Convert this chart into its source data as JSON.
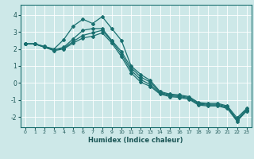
{
  "xlabel": "Humidex (Indice chaleur)",
  "ylabel": "",
  "background_color": "#cde8e8",
  "grid_color": "#b0d8d8",
  "line_color": "#1a7070",
  "xlim": [
    -0.5,
    23.5
  ],
  "ylim": [
    -2.6,
    4.6
  ],
  "yticks": [
    -2,
    -1,
    0,
    1,
    2,
    3,
    4
  ],
  "xticks": [
    0,
    1,
    2,
    3,
    4,
    5,
    6,
    7,
    8,
    9,
    10,
    11,
    12,
    13,
    14,
    15,
    16,
    17,
    18,
    19,
    20,
    21,
    22,
    23
  ],
  "lines": [
    {
      "x": [
        0,
        1,
        2,
        3,
        4,
        5,
        6,
        7,
        8,
        9,
        10,
        11,
        12,
        13,
        14,
        15,
        16,
        17,
        18,
        19,
        20,
        21,
        22,
        23
      ],
      "y": [
        2.3,
        2.3,
        2.15,
        2.0,
        2.55,
        3.35,
        3.75,
        3.5,
        3.9,
        3.2,
        2.5,
        1.0,
        0.5,
        0.15,
        -0.5,
        -0.65,
        -0.7,
        -0.8,
        -1.15,
        -1.2,
        -1.2,
        -1.35,
        -2.05,
        -1.5
      ]
    },
    {
      "x": [
        0,
        1,
        2,
        3,
        4,
        5,
        6,
        7,
        8,
        9,
        10,
        11,
        12,
        13,
        14,
        15,
        16,
        17,
        18,
        19,
        20,
        21,
        22,
        23
      ],
      "y": [
        2.3,
        2.3,
        2.15,
        1.95,
        2.1,
        2.6,
        3.1,
        3.2,
        3.2,
        2.5,
        1.85,
        0.9,
        0.35,
        0.05,
        -0.55,
        -0.7,
        -0.75,
        -0.85,
        -1.2,
        -1.25,
        -1.25,
        -1.4,
        -2.15,
        -1.55
      ]
    },
    {
      "x": [
        0,
        1,
        2,
        3,
        4,
        5,
        6,
        7,
        8,
        9,
        10,
        11,
        12,
        13,
        14,
        15,
        16,
        17,
        18,
        19,
        20,
        21,
        22,
        23
      ],
      "y": [
        2.3,
        2.3,
        2.1,
        1.95,
        2.05,
        2.45,
        2.8,
        2.95,
        3.1,
        2.45,
        1.7,
        0.75,
        0.2,
        -0.1,
        -0.6,
        -0.75,
        -0.8,
        -0.9,
        -1.25,
        -1.3,
        -1.3,
        -1.45,
        -2.2,
        -1.6
      ]
    },
    {
      "x": [
        0,
        1,
        2,
        3,
        4,
        5,
        6,
        7,
        8,
        9,
        10,
        11,
        12,
        13,
        14,
        15,
        16,
        17,
        18,
        19,
        20,
        21,
        22,
        23
      ],
      "y": [
        2.3,
        2.3,
        2.1,
        1.9,
        2.0,
        2.35,
        2.65,
        2.75,
        2.95,
        2.35,
        1.55,
        0.6,
        0.05,
        -0.2,
        -0.65,
        -0.8,
        -0.85,
        -0.95,
        -1.3,
        -1.35,
        -1.35,
        -1.5,
        -2.25,
        -1.65
      ]
    }
  ]
}
